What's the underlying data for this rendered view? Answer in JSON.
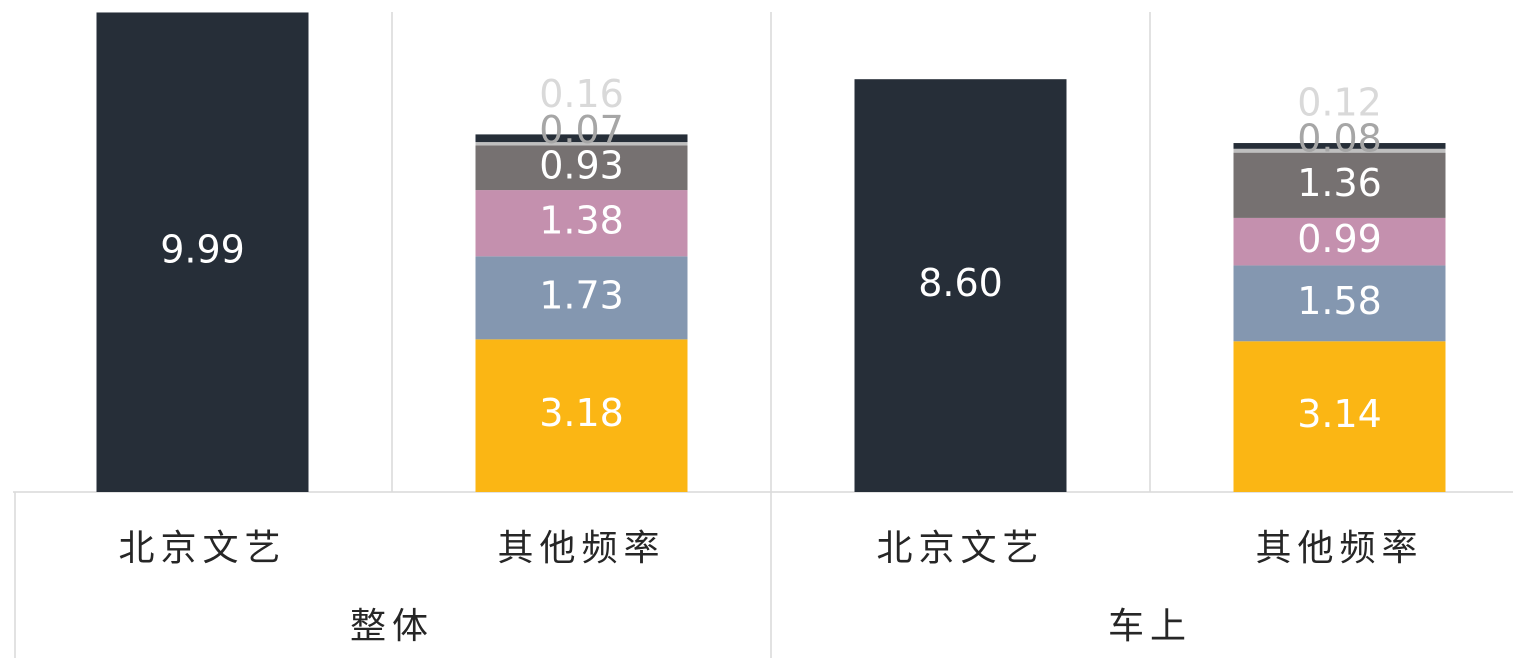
{
  "chart_data": {
    "type": "stacked_bar",
    "categories": [
      "北京文艺",
      "其他频率",
      "北京文艺",
      "其他频率"
    ],
    "groups": [
      {
        "label": "整体",
        "span": 2
      },
      {
        "label": "车上",
        "span": 2
      }
    ],
    "series": [
      {
        "color": "#262e38",
        "label_color": "#ffffff",
        "values": [
          9.99,
          null,
          8.6,
          null
        ],
        "value_labels": [
          "9.99",
          null,
          "8.60",
          null
        ]
      },
      {
        "color": "#fbb614",
        "label_color": "#ffffff",
        "values": [
          null,
          3.18,
          null,
          3.14
        ]
      },
      {
        "color": "#8497b0",
        "label_color": "#ffffff",
        "values": [
          null,
          1.73,
          null,
          1.58
        ]
      },
      {
        "color": "#c490ae",
        "label_color": "#ffffff",
        "values": [
          null,
          1.38,
          null,
          0.99
        ]
      },
      {
        "color": "#767171",
        "label_color": "#ffffff",
        "values": [
          null,
          0.93,
          null,
          1.36
        ]
      },
      {
        "color": "#bfbfbf",
        "label_color": "#a6a6a6",
        "values": [
          null,
          0.07,
          null,
          0.08
        ]
      },
      {
        "color": "#262e38",
        "label_color": "#d9d9d9",
        "values": [
          null,
          0.16,
          null,
          0.12
        ]
      }
    ],
    "ylim": [
      0,
      10
    ]
  }
}
